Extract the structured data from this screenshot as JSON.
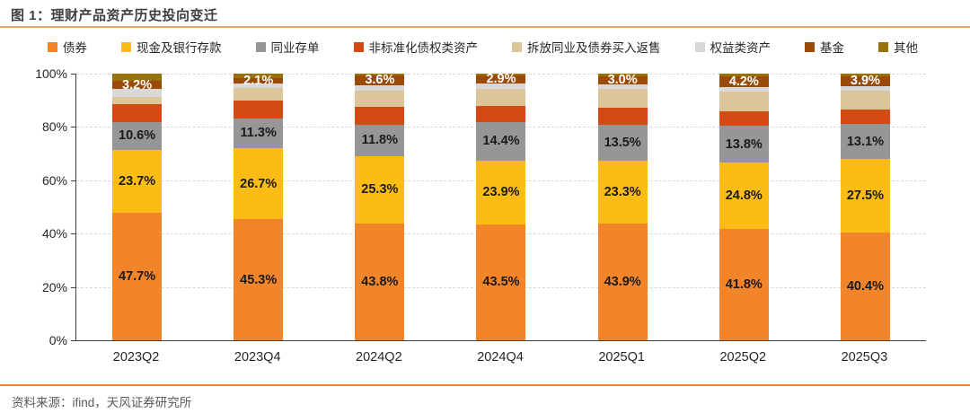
{
  "title": "图 1：理财产品资产历史投向变迁",
  "source": "资料来源：ifind，天风证券研究所",
  "colors": {
    "title_text": "#3f3f3f",
    "title_rule": "#f0a260",
    "footer_rule": "#e8862f",
    "axis": "#404040",
    "gridline": "#d9d9d9",
    "tick_text": "#262626"
  },
  "chart_data": {
    "type": "bar",
    "stacked": true,
    "unit": "%",
    "title": "理财产品资产历史投向变迁",
    "xlabel": "",
    "ylabel": "",
    "ylim": [
      0,
      100
    ],
    "yticks": [
      "0%",
      "20%",
      "40%",
      "60%",
      "80%",
      "100%"
    ],
    "grid": "horizontal-dashed",
    "legend_position": "top",
    "categories": [
      "2023Q2",
      "2023Q4",
      "2024Q2",
      "2024Q4",
      "2025Q1",
      "2025Q2",
      "2025Q3"
    ],
    "series": [
      {
        "name": "债券",
        "color": "#f28429",
        "labeled": true,
        "label_color": "#1a1a1a",
        "values": [
          47.7,
          45.3,
          43.8,
          43.5,
          43.9,
          41.8,
          40.4
        ]
      },
      {
        "name": "现金及银行存款",
        "color": "#fdbc13",
        "labeled": true,
        "label_color": "#1a1a1a",
        "values": [
          23.7,
          26.7,
          25.3,
          23.9,
          23.3,
          24.8,
          27.5
        ]
      },
      {
        "name": "同业存单",
        "color": "#969696",
        "labeled": true,
        "label_color": "#1a1a1a",
        "values": [
          10.6,
          11.3,
          11.8,
          14.4,
          13.5,
          13.8,
          13.1
        ]
      },
      {
        "name": "非标准化债权类资产",
        "color": "#d44a15",
        "labeled": false,
        "values": [
          6.7,
          6.6,
          6.5,
          6.0,
          6.5,
          5.6,
          5.6
        ]
      },
      {
        "name": "拆放同业及债券买入返售",
        "color": "#dbc69c",
        "labeled": false,
        "values": [
          2.6,
          4.7,
          6.3,
          6.5,
          7.0,
          7.4,
          6.9
        ]
      },
      {
        "name": "权益类资产",
        "color": "#d8d8d8",
        "labeled": false,
        "values": [
          2.9,
          1.7,
          2.0,
          2.1,
          1.8,
          1.5,
          1.7
        ]
      },
      {
        "name": "基金",
        "color": "#9b4a08",
        "labeled": true,
        "label_color": "#ffffff",
        "values": [
          3.2,
          2.1,
          3.6,
          2.9,
          3.0,
          4.2,
          3.9
        ]
      },
      {
        "name": "其他",
        "color": "#97720b",
        "labeled": false,
        "values": [
          2.6,
          1.6,
          0.7,
          0.7,
          1.0,
          0.9,
          0.9
        ]
      }
    ],
    "label_note": "only 债券 / 现金及银行存款 / 同业存单 / 基金 segments carry data labels; unlabeled segment values estimated from bar heights"
  }
}
